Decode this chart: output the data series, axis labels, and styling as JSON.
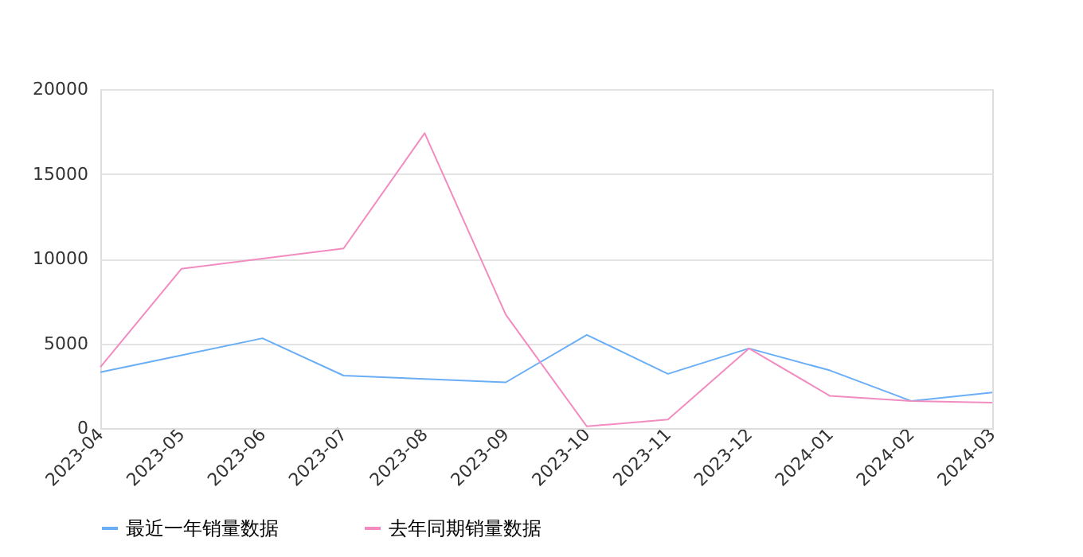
{
  "chart_data": {
    "type": "line",
    "categories": [
      "2023-04",
      "2023-05",
      "2023-06",
      "2023-07",
      "2023-08",
      "2023-09",
      "2023-10",
      "2023-11",
      "2023-12",
      "2024-01",
      "2024-02",
      "2024-03"
    ],
    "series": [
      {
        "name": "最近一年销量数据",
        "color": "#6aaef5",
        "values": [
          3300,
          4300,
          5300,
          3100,
          2900,
          2700,
          5500,
          3200,
          4700,
          3400,
          1600,
          2100
        ]
      },
      {
        "name": "去年同期销量数据",
        "color": "#f28cc0",
        "values": [
          3600,
          9400,
          10000,
          10600,
          17400,
          6700,
          100,
          500,
          4700,
          1900,
          1600,
          1500
        ]
      }
    ],
    "ylim": [
      0,
      20000
    ],
    "yticks": [
      0,
      5000,
      10000,
      15000,
      20000
    ],
    "grid": "y",
    "legend": "bottom",
    "marker": "none",
    "line_style": "solid"
  }
}
